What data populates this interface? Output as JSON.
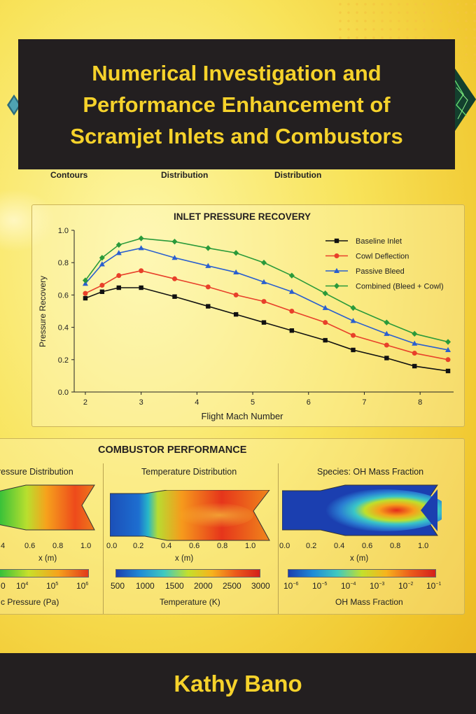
{
  "title_lines": [
    "Numerical Investigation and",
    "Performance Enhancement of",
    "Scramjet Inlets and Combustors"
  ],
  "author": "Kathy Bano",
  "sub_labels": [
    "Contours",
    "Distribution",
    "Distribution"
  ],
  "chart_data": {
    "type": "line",
    "title": "INLET PRESSURE RECOVERY",
    "xlabel": "Flight Mach Number",
    "ylabel": "Pressure Recovery",
    "xlim": [
      1.8,
      8.6
    ],
    "ylim": [
      0.0,
      1.0
    ],
    "xticks": [
      2,
      3,
      4,
      5,
      6,
      7,
      8
    ],
    "yticks": [
      "0.0",
      "0.2",
      "0.4",
      "0.6",
      "0.8",
      "1.0"
    ],
    "legend_position": "top-right",
    "series": [
      {
        "name": "Baseline Inlet",
        "color": "#111111",
        "marker": "square",
        "x": [
          2.0,
          2.3,
          2.6,
          3.0,
          3.6,
          4.2,
          4.7,
          5.2,
          5.7,
          6.3,
          6.8,
          7.4,
          7.9,
          8.5
        ],
        "y": [
          0.58,
          0.62,
          0.645,
          0.645,
          0.59,
          0.53,
          0.48,
          0.43,
          0.38,
          0.32,
          0.26,
          0.21,
          0.16,
          0.13
        ]
      },
      {
        "name": "Cowl Deflection",
        "color": "#e8402a",
        "marker": "circle",
        "x": [
          2.0,
          2.3,
          2.6,
          3.0,
          3.6,
          4.2,
          4.7,
          5.2,
          5.7,
          6.3,
          6.8,
          7.4,
          7.9,
          8.5
        ],
        "y": [
          0.61,
          0.66,
          0.72,
          0.75,
          0.7,
          0.65,
          0.6,
          0.56,
          0.5,
          0.43,
          0.35,
          0.29,
          0.24,
          0.2
        ]
      },
      {
        "name": "Passive Bleed",
        "color": "#2a5fcf",
        "marker": "triangle",
        "x": [
          2.0,
          2.3,
          2.6,
          3.0,
          3.6,
          4.2,
          4.7,
          5.2,
          5.7,
          6.3,
          6.8,
          7.4,
          7.9,
          8.5
        ],
        "y": [
          0.67,
          0.79,
          0.86,
          0.89,
          0.83,
          0.78,
          0.74,
          0.68,
          0.62,
          0.52,
          0.44,
          0.36,
          0.3,
          0.26
        ]
      },
      {
        "name": "Combined (Bleed + Cowl)",
        "color": "#2a9a3a",
        "marker": "diamond",
        "x": [
          2.0,
          2.3,
          2.6,
          3.0,
          3.6,
          4.2,
          4.7,
          5.2,
          5.7,
          6.3,
          6.8,
          7.4,
          7.9,
          8.5
        ],
        "y": [
          0.69,
          0.83,
          0.91,
          0.95,
          0.93,
          0.89,
          0.86,
          0.8,
          0.72,
          0.61,
          0.52,
          0.43,
          0.36,
          0.31
        ]
      }
    ]
  },
  "combustor": {
    "title": "COMBUSTOR PERFORMANCE",
    "panels": [
      {
        "title": "ressure Distribution",
        "xticks": [
          "4",
          "0.6",
          "0.8",
          "1.0"
        ],
        "xlabel": "x (m)",
        "cbar_ticks": [
          "0",
          "10",
          "10",
          "10"
        ],
        "cbar_exps": [
          "",
          "4",
          "5",
          "6"
        ],
        "cbar_label": "c Pressure (Pa)"
      },
      {
        "title": "Temperature Distribution",
        "xticks": [
          "0.0",
          "0.2",
          "0.4",
          "0.6",
          "0.8",
          "1.0"
        ],
        "xlabel": "x (m)",
        "cbar_ticks": [
          "500",
          "1000",
          "1500",
          "2000",
          "2500",
          "3000"
        ],
        "cbar_label": "Temperature (K)"
      },
      {
        "title": "Species: OH Mass Fraction",
        "xticks": [
          "0.0",
          "0.2",
          "0.4",
          "0.6",
          "0.8",
          "1.0"
        ],
        "xlabel": "x (m)",
        "cbar_ticks": [
          "10",
          "10",
          "10",
          "10",
          "10",
          "10"
        ],
        "cbar_exps": [
          "−6",
          "−5",
          "−4",
          "−3",
          "−2",
          "−1"
        ],
        "cbar_label": "OH Mass Fraction"
      }
    ]
  }
}
